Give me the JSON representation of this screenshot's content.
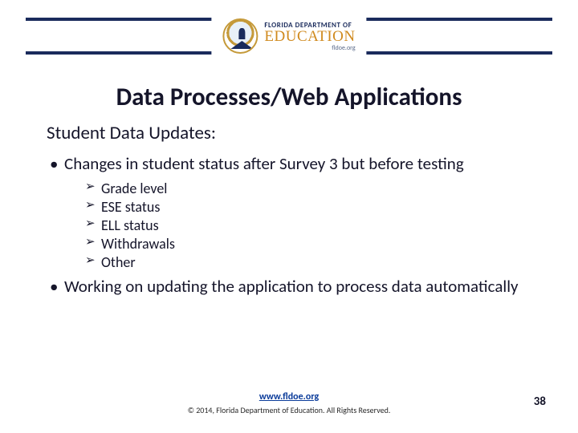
{
  "logo": {
    "line1": "FLORIDA DEPARTMENT OF",
    "line2": "EDUCATION",
    "line3": "fldoe.org"
  },
  "title": "Data Processes/Web Applications",
  "subheading": "Student Data Updates:",
  "bullets": [
    {
      "text": "Changes in student status after Survey 3 but before testing",
      "subitems": [
        "Grade level",
        "ESE status",
        "ELL status",
        "Withdrawals",
        "Other"
      ]
    },
    {
      "text": "Working on updating the application to process data automatically",
      "subitems": []
    }
  ],
  "footer": {
    "link_text": "www.fldoe.org",
    "link_href": "http://www.fldoe.org",
    "copyright": "© 2014, Florida Department of Education. All Rights Reserved."
  },
  "page_number": "38",
  "colors": {
    "rule": "#1a2b5c",
    "title": "#15152a",
    "logo_gold": "#d08a1e",
    "link": "#0a3b9a"
  }
}
